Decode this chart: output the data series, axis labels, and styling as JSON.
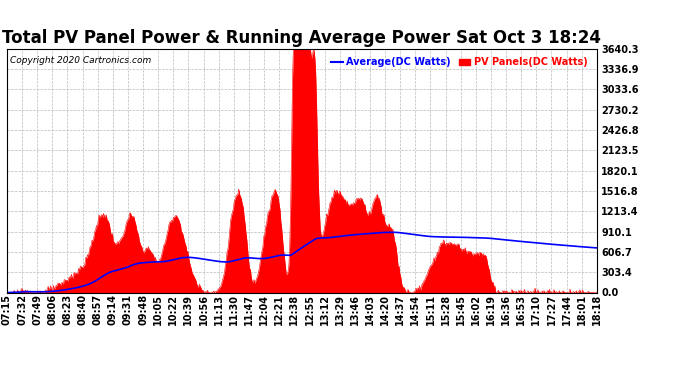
{
  "title": "Total PV Panel Power & Running Average Power Sat Oct 3 18:24",
  "copyright": "Copyright 2020 Cartronics.com",
  "legend_average": "Average(DC Watts)",
  "legend_pv": "PV Panels(DC Watts)",
  "yticks": [
    0.0,
    303.4,
    606.7,
    910.1,
    1213.4,
    1516.8,
    1820.1,
    2123.5,
    2426.8,
    2730.2,
    3033.6,
    3336.9,
    3640.3
  ],
  "ymax": 3640.3,
  "ymin": 0.0,
  "background_color": "#ffffff",
  "grid_color": "#bbbbbb",
  "pv_color": "#ff0000",
  "average_color": "#0000ff",
  "title_fontsize": 12,
  "tick_fontsize": 7,
  "x_tick_labels": [
    "07:15",
    "07:32",
    "07:49",
    "08:06",
    "08:23",
    "08:40",
    "08:57",
    "09:14",
    "09:31",
    "09:48",
    "10:05",
    "10:22",
    "10:39",
    "10:56",
    "11:13",
    "11:30",
    "11:47",
    "12:04",
    "12:21",
    "12:38",
    "12:55",
    "13:12",
    "13:29",
    "13:46",
    "14:03",
    "14:20",
    "14:37",
    "14:54",
    "15:11",
    "15:28",
    "15:45",
    "16:02",
    "16:19",
    "16:36",
    "16:53",
    "17:10",
    "17:27",
    "17:44",
    "18:01",
    "18:18"
  ],
  "n_points": 660
}
